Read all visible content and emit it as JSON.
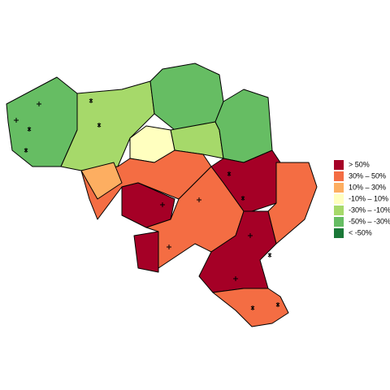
{
  "legend": {
    "items": [
      {
        "label": ">  50%",
        "color": "#a50026"
      },
      {
        "label": "30%  –  50%",
        "color": "#f46d43"
      },
      {
        "label": "10%  –  30%",
        "color": "#fdae61"
      },
      {
        "label": "-10%  –  10%",
        "color": "#ffffbf"
      },
      {
        "label": "-30%  –  -10%",
        "color": "#a6d96a"
      },
      {
        "label": "-50%  –  -30%",
        "color": "#66bd63"
      },
      {
        "label": "<  -50%",
        "color": "#1a7837"
      }
    ]
  }
}
